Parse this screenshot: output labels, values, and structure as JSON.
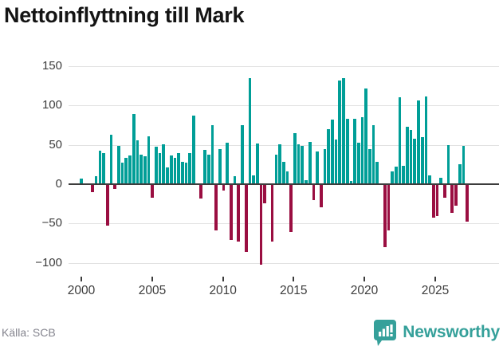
{
  "title": "Nettoinflyttning till Mark",
  "source_note": "Källa: SCB",
  "brand": {
    "name": "Newsworthy"
  },
  "colors": {
    "positive_bar": "#009e97",
    "negative_bar": "#9a0e41",
    "zero_line": "#3d3d3d",
    "gridline": "#e2e2e2",
    "brand_teal": "#35a09a",
    "text_dark": "#141414",
    "axis_text": "#3c3c3c",
    "source_text": "#84848e"
  },
  "chart_data": {
    "type": "bar",
    "title": "Nettoinflyttning till Mark",
    "xlabel": "",
    "ylabel": "",
    "x_start": "2000 Q1",
    "x_end": "2025 Q4",
    "frequency": "quarterly",
    "ylim": [
      -115,
      152
    ],
    "grid": true,
    "legend": false,
    "y_ticks": [
      {
        "label": "150",
        "value": 150
      },
      {
        "label": "100",
        "value": 100
      },
      {
        "label": "50",
        "value": 50
      },
      {
        "label": "0",
        "value": 0
      },
      {
        "label": "−50",
        "value": -50
      },
      {
        "label": "−100",
        "value": -100
      }
    ],
    "x_tick_labels": [
      "2000",
      "2005",
      "2010",
      "2015",
      "2020",
      "2025"
    ],
    "values": [
      7,
      0,
      0,
      -9,
      10,
      43,
      40,
      -52,
      63,
      -5,
      49,
      27,
      33,
      36,
      89,
      56,
      38,
      35,
      61,
      -16,
      48,
      40,
      51,
      21,
      36,
      33,
      40,
      28,
      27,
      40,
      87,
      0,
      -17,
      44,
      37,
      75,
      -58,
      45,
      -7,
      53,
      -70,
      10,
      -72,
      75,
      -85,
      135,
      11,
      52,
      -101,
      -23,
      0,
      -72,
      38,
      51,
      28,
      16,
      -60,
      65,
      51,
      49,
      5,
      54,
      -19,
      42,
      -28,
      45,
      70,
      82,
      57,
      132,
      135,
      83,
      4,
      83,
      53,
      85,
      122,
      45,
      75,
      28,
      0,
      -79,
      -58,
      16,
      22,
      110,
      23,
      73,
      69,
      58,
      106,
      60,
      111,
      11,
      -42,
      -40,
      8,
      -16,
      50,
      -35,
      -26,
      25,
      49,
      -47
    ]
  }
}
